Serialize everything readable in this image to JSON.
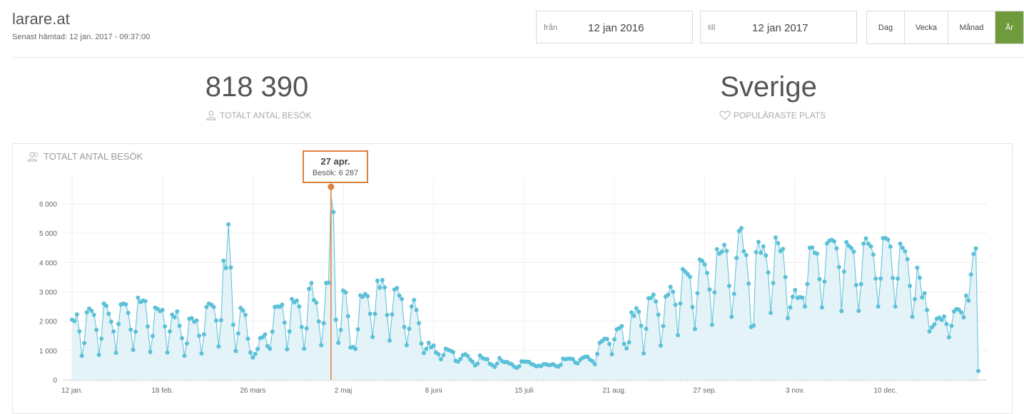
{
  "header": {
    "site": "larare.at",
    "fetched": "Senast hämtad: 12 jan. 2017 - 09:37:00"
  },
  "date_range": {
    "from_label": "från",
    "from_value": "12 jan 2016",
    "to_label": "till",
    "to_value": "12 jan 2017"
  },
  "period_buttons": [
    "Dag",
    "Vecka",
    "Månad",
    "År"
  ],
  "active_period": "År",
  "stats": {
    "total_visits": "818 390",
    "total_visits_label": "TOTALT ANTAL BESÖK",
    "top_place": "Sverige",
    "top_place_label": "POPULÄRASTE PLATS"
  },
  "panel": {
    "title": "TOTALT ANTAL BESÖK"
  },
  "tooltip": {
    "date": "27 apr.",
    "value": "Besök: 6 287"
  },
  "colors": {
    "line": "#5bc0d8",
    "area": "#e3f3f8",
    "highlight": "#e07f3c",
    "active_button": "#6f9b3d"
  },
  "chart_data": {
    "type": "area",
    "series": [
      {
        "name": "Besök",
        "values": [
          2050,
          2000,
          2230,
          1650,
          820,
          1250,
          2300,
          2430,
          2350,
          2210,
          1700,
          850,
          1400,
          2600,
          2520,
          2250,
          1980,
          1650,
          920,
          1900,
          2570,
          2600,
          2570,
          2280,
          1710,
          1020,
          1640,
          2800,
          2650,
          2700,
          2680,
          1820,
          950,
          1490,
          2460,
          2420,
          2340,
          2380,
          1820,
          930,
          1650,
          2220,
          2130,
          2330,
          1840,
          1420,
          820,
          1240,
          2080,
          2100,
          1980,
          2020,
          1500,
          900,
          1550,
          2480,
          2600,
          2560,
          2480,
          2020,
          1140,
          2030,
          4060,
          3810,
          5300,
          3830,
          1880,
          980,
          1580,
          2450,
          2360,
          2210,
          1400,
          930,
          760,
          880,
          1050,
          1420,
          1450,
          1550,
          1150,
          1060,
          1640,
          2480,
          2500,
          2490,
          2560,
          1950,
          1040,
          1650,
          2750,
          2640,
          2700,
          2500,
          1800,
          1060,
          1750,
          3100,
          3300,
          2720,
          2630,
          1990,
          1180,
          1930,
          3300,
          3310,
          6287,
          5720,
          2050,
          1260,
          1700,
          3040,
          2980,
          2170,
          1100,
          1120,
          1050,
          1720,
          2880,
          2830,
          2920,
          2850,
          2250,
          1460,
          2250,
          3380,
          3140,
          3400,
          3150,
          2210,
          1340,
          2230,
          3080,
          3130,
          2870,
          2750,
          1800,
          1180,
          1740,
          2500,
          2720,
          2380,
          1930,
          1240,
          910,
          1050,
          1260,
          1110,
          1170,
          930,
          870,
          700,
          840,
          1060,
          1020,
          990,
          940,
          650,
          620,
          710,
          840,
          870,
          810,
          690,
          610,
          490,
          550,
          830,
          740,
          710,
          700,
          550,
          500,
          440,
          550,
          740,
          640,
          600,
          610,
          560,
          530,
          450,
          410,
          460,
          630,
          620,
          620,
          610,
          540,
          510,
          460,
          480,
          470,
          530,
          530,
          500,
          510,
          530,
          470,
          450,
          510,
          720,
          700,
          720,
          720,
          700,
          590,
          560,
          680,
          750,
          780,
          790,
          690,
          640,
          530,
          880,
          1260,
          1320,
          1400,
          1390,
          1220,
          870,
          1380,
          1720,
          1760,
          1830,
          1220,
          1070,
          1280,
          2300,
          2180,
          2440,
          2320,
          1840,
          900,
          1740,
          2780,
          2790,
          2900,
          2670,
          2220,
          1170,
          1830,
          2840,
          2900,
          3170,
          3000,
          2560,
          1520,
          2600,
          3770,
          3690,
          3600,
          3510,
          2480,
          1730,
          2950,
          4100,
          4050,
          3930,
          3640,
          3080,
          1880,
          2980,
          4450,
          4300,
          4370,
          4600,
          4390,
          3200,
          2150,
          2930,
          4150,
          5070,
          5170,
          4380,
          4250,
          3280,
          1800,
          1850,
          4350,
          4700,
          4330,
          4550,
          4240,
          3660,
          2280,
          3300,
          4850,
          4660,
          4390,
          4460,
          3500,
          2100,
          2470,
          2830,
          3060,
          2790,
          2820,
          2800,
          2500,
          3260,
          4500,
          4510,
          4330,
          4300,
          3430,
          2470,
          3350,
          4650,
          4740,
          4770,
          4720,
          4480,
          3840,
          2340,
          3690,
          4690,
          4570,
          4490,
          4370,
          3230,
          2350,
          3260,
          4640,
          4820,
          4640,
          4550,
          4270,
          3450,
          2500,
          3450,
          4830,
          4830,
          4780,
          4540,
          3470,
          2500,
          3450,
          4640,
          4500,
          4380,
          4110,
          3200,
          2150,
          2750,
          3820,
          3480,
          2810,
          2950,
          2380,
          1650,
          1790,
          1890,
          2080,
          2120,
          2040,
          2160,
          1900,
          1450,
          1840,
          2330,
          2410,
          2390,
          2300,
          2130,
          2870,
          2700,
          3590,
          4290,
          4480,
          300
        ]
      }
    ],
    "x_tick_labels": [
      "12 jan.",
      "18 feb.",
      "26 mars",
      "2 maj",
      "8 juni",
      "15 juli",
      "21 aug.",
      "27 sep.",
      "3 nov.",
      "10 dec."
    ],
    "y_ticks": [
      "0",
      "1 000",
      "2 000",
      "3 000",
      "4 000",
      "5 000",
      "6 000"
    ],
    "ylim": [
      0,
      6000
    ],
    "highlight_index": 106,
    "grid": true,
    "legend": "none"
  }
}
